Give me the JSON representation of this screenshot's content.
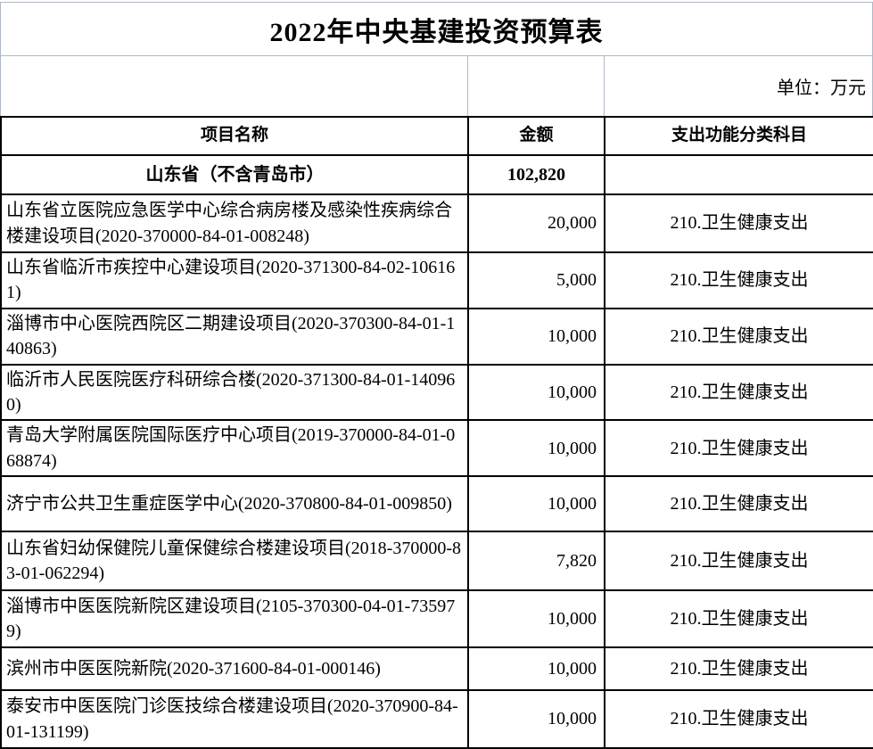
{
  "title": "2022年中央基建投资预算表",
  "unit_note": "单位：万元",
  "colors": {
    "background": "#ffffff",
    "text": "#000000",
    "table_border": "#000000",
    "gridline_light": "#b0b9c6"
  },
  "table": {
    "headers": [
      "项目名称",
      "金额",
      "支出功能分类科目"
    ],
    "summary_row": {
      "name": "山东省（不含青岛市）",
      "amount": "102,820",
      "category": ""
    },
    "rows": [
      {
        "name": "山东省立医院应急医学中心综合病房楼及感染性疾病综合楼建设项目(2020-370000-84-01-008248)",
        "amount": "20,000",
        "category": "210.卫生健康支出"
      },
      {
        "name": "山东省临沂市疾控中心建设项目(2020-371300-84-02-106161)",
        "amount": "5,000",
        "category": "210.卫生健康支出"
      },
      {
        "name": "淄博市中心医院西院区二期建设项目(2020-370300-84-01-140863)",
        "amount": "10,000",
        "category": "210.卫生健康支出"
      },
      {
        "name": "临沂市人民医院医疗科研综合楼(2020-371300-84-01-140960)",
        "amount": "10,000",
        "category": "210.卫生健康支出"
      },
      {
        "name": "青岛大学附属医院国际医疗中心项目(2019-370000-84-01-068874)",
        "amount": "10,000",
        "category": "210.卫生健康支出"
      },
      {
        "name": "济宁市公共卫生重症医学中心(2020-370800-84-01-009850)",
        "amount": "10,000",
        "category": "210.卫生健康支出"
      },
      {
        "name": "山东省妇幼保健院儿童保健综合楼建设项目(2018-370000-83-01-062294)",
        "amount": "7,820",
        "category": "210.卫生健康支出"
      },
      {
        "name": "淄博市中医医院新院区建设项目(2105-370300-04-01-735979)",
        "amount": "10,000",
        "category": "210.卫生健康支出"
      },
      {
        "name": "滨州市中医医院新院(2020-371600-84-01-000146)",
        "amount": "10,000",
        "category": "210.卫生健康支出"
      },
      {
        "name": "泰安市中医医院门诊医技综合楼建设项目(2020-370900-84-01-131199)",
        "amount": "10,000",
        "category": "210.卫生健康支出"
      }
    ]
  }
}
